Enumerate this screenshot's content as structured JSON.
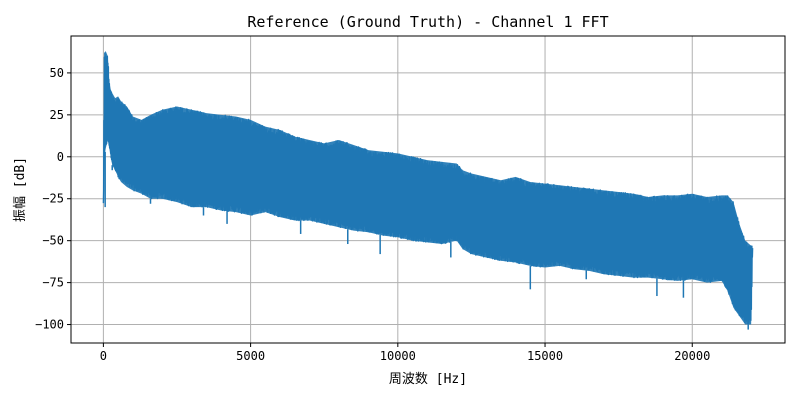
{
  "chart_data": {
    "type": "line",
    "title": "Reference (Ground Truth) - Channel 1 FFT",
    "xlabel": "周波数 [Hz]",
    "ylabel": "振幅 [dB]",
    "xlim": [
      -1100,
      23150
    ],
    "ylim": [
      -111,
      72
    ],
    "xticks": [
      0,
      5000,
      10000,
      15000,
      20000
    ],
    "yticks": [
      -100,
      -75,
      -50,
      -25,
      0,
      25,
      50
    ],
    "grid": true,
    "line_color": "#1f77b4",
    "series": [
      {
        "x": [
          0,
          30,
          80,
          150,
          200,
          250,
          300,
          400,
          500,
          600,
          800,
          1000,
          1300,
          1600,
          2000,
          2500,
          3000,
          3500,
          4000,
          4500,
          5000,
          5500,
          6000,
          6500,
          7000,
          7500,
          8000,
          8500,
          9000,
          9500,
          10000,
          10500,
          11000,
          11500,
          12000,
          12200,
          12500,
          13000,
          13500,
          14000,
          14500,
          15000,
          15500,
          16000,
          16500,
          17000,
          17500,
          18000,
          18500,
          19000,
          19500,
          20000,
          20500,
          21000,
          21200,
          21400,
          21600,
          21800,
          22000,
          22050
        ],
        "upper": [
          -25,
          62,
          63,
          60,
          45,
          40,
          38,
          35,
          36,
          33,
          30,
          24,
          22,
          25,
          28,
          30,
          28,
          26,
          25,
          24,
          22,
          18,
          16,
          12,
          10,
          8,
          10,
          7,
          4,
          3,
          2,
          0,
          -2,
          -3,
          -4,
          -8,
          -10,
          -12,
          -14,
          -12,
          -15,
          -16,
          -17,
          -18,
          -19,
          -20,
          -21,
          -22,
          -24,
          -23,
          -23,
          -22,
          -24,
          -23,
          -23,
          -27,
          -40,
          -50,
          -53,
          -53
        ],
        "lower": [
          -30,
          0,
          5,
          10,
          5,
          0,
          -5,
          -8,
          -12,
          -15,
          -18,
          -20,
          -22,
          -25,
          -25,
          -27,
          -30,
          -30,
          -32,
          -33,
          -35,
          -33,
          -36,
          -38,
          -38,
          -40,
          -42,
          -44,
          -45,
          -47,
          -48,
          -50,
          -51,
          -52,
          -50,
          -55,
          -58,
          -60,
          -62,
          -63,
          -65,
          -66,
          -65,
          -67,
          -68,
          -70,
          -71,
          -72,
          -72,
          -73,
          -74,
          -73,
          -75,
          -74,
          -80,
          -90,
          -95,
          -100,
          -100,
          -55
        ],
        "dips": [
          [
            60,
            -30
          ],
          [
            300,
            -8
          ],
          [
            1600,
            -28
          ],
          [
            3400,
            -35
          ],
          [
            4200,
            -40
          ],
          [
            6700,
            -46
          ],
          [
            8300,
            -52
          ],
          [
            9400,
            -58
          ],
          [
            11800,
            -60
          ],
          [
            14500,
            -79
          ],
          [
            16400,
            -73
          ],
          [
            18800,
            -83
          ],
          [
            19700,
            -84
          ],
          [
            21900,
            -103
          ]
        ]
      }
    ]
  }
}
